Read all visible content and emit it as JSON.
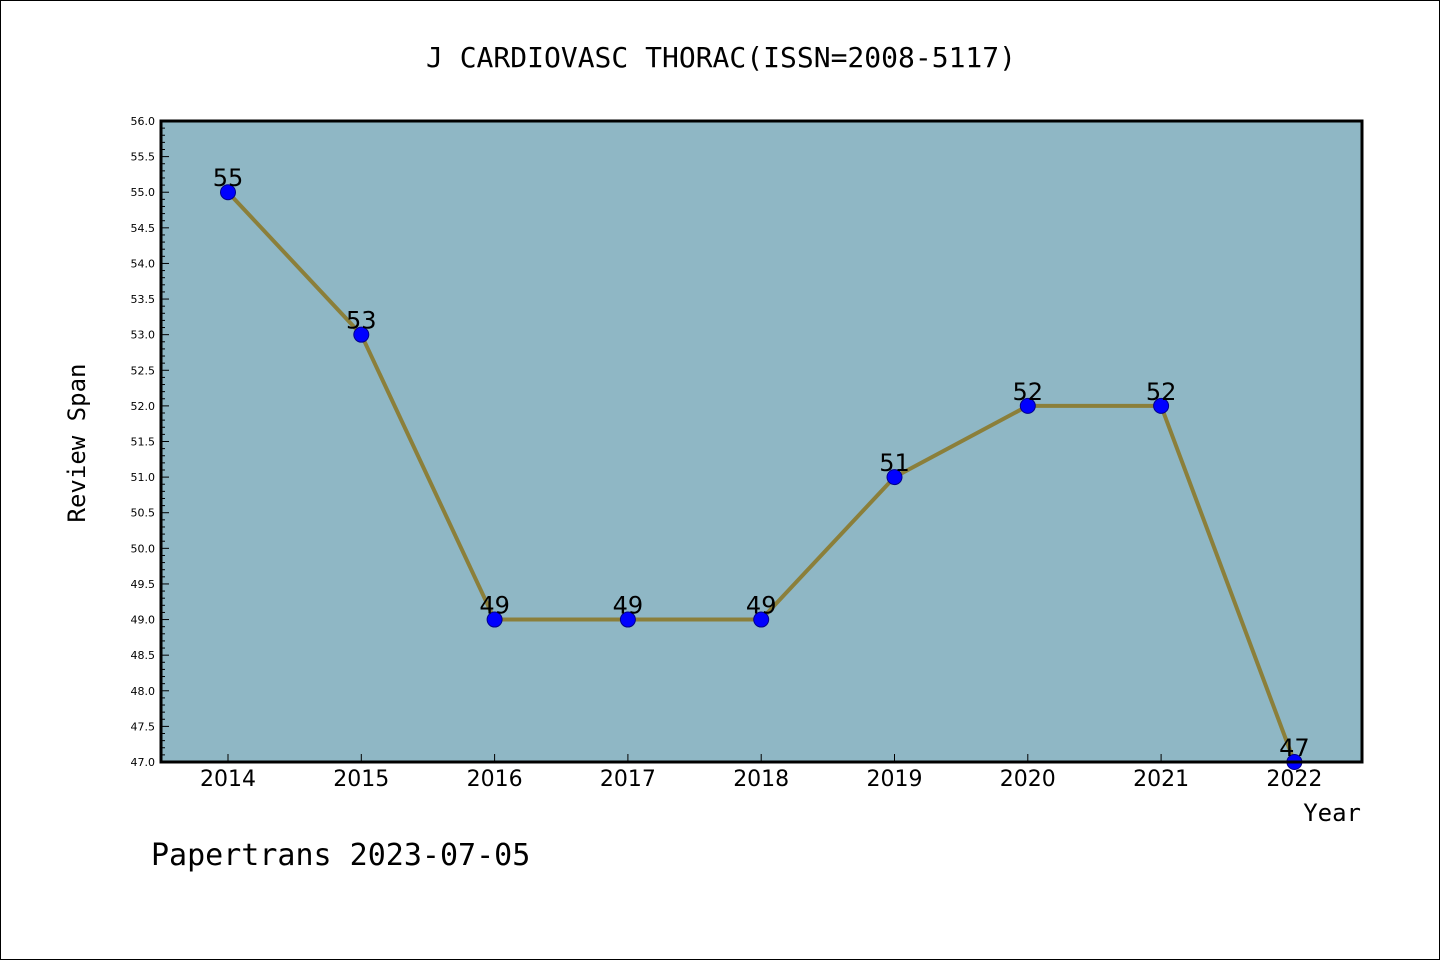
{
  "footer": "Papertrans 2023-07-05",
  "colors": {
    "plot_background": "#8fb7c5",
    "line": "#8b7f3a",
    "marker_fill": "#0000ff",
    "marker_edge": "#00008b",
    "axis": "#000000"
  },
  "chart_data": {
    "type": "line",
    "title": "J CARDIOVASC THORAC(ISSN=2008-5117)",
    "xlabel": "Year",
    "ylabel": "Review Span",
    "categories": [
      "2014",
      "2015",
      "2016",
      "2017",
      "2018",
      "2019",
      "2020",
      "2021",
      "2022"
    ],
    "values": [
      55,
      53,
      49,
      49,
      49,
      51,
      52,
      52,
      47
    ],
    "data_labels": [
      "55",
      "53",
      "49",
      "49",
      "49",
      "51",
      "52",
      "52",
      "47"
    ],
    "ylim": [
      47.0,
      56.0
    ],
    "yticks": [
      "47.0",
      "47.5",
      "48.0",
      "48.5",
      "49.0",
      "49.5",
      "50.0",
      "50.5",
      "51.0",
      "51.5",
      "52.0",
      "52.5",
      "53.0",
      "53.5",
      "54.0",
      "54.5",
      "55.0",
      "55.5",
      "56.0"
    ],
    "grid": false,
    "legend": "none"
  }
}
